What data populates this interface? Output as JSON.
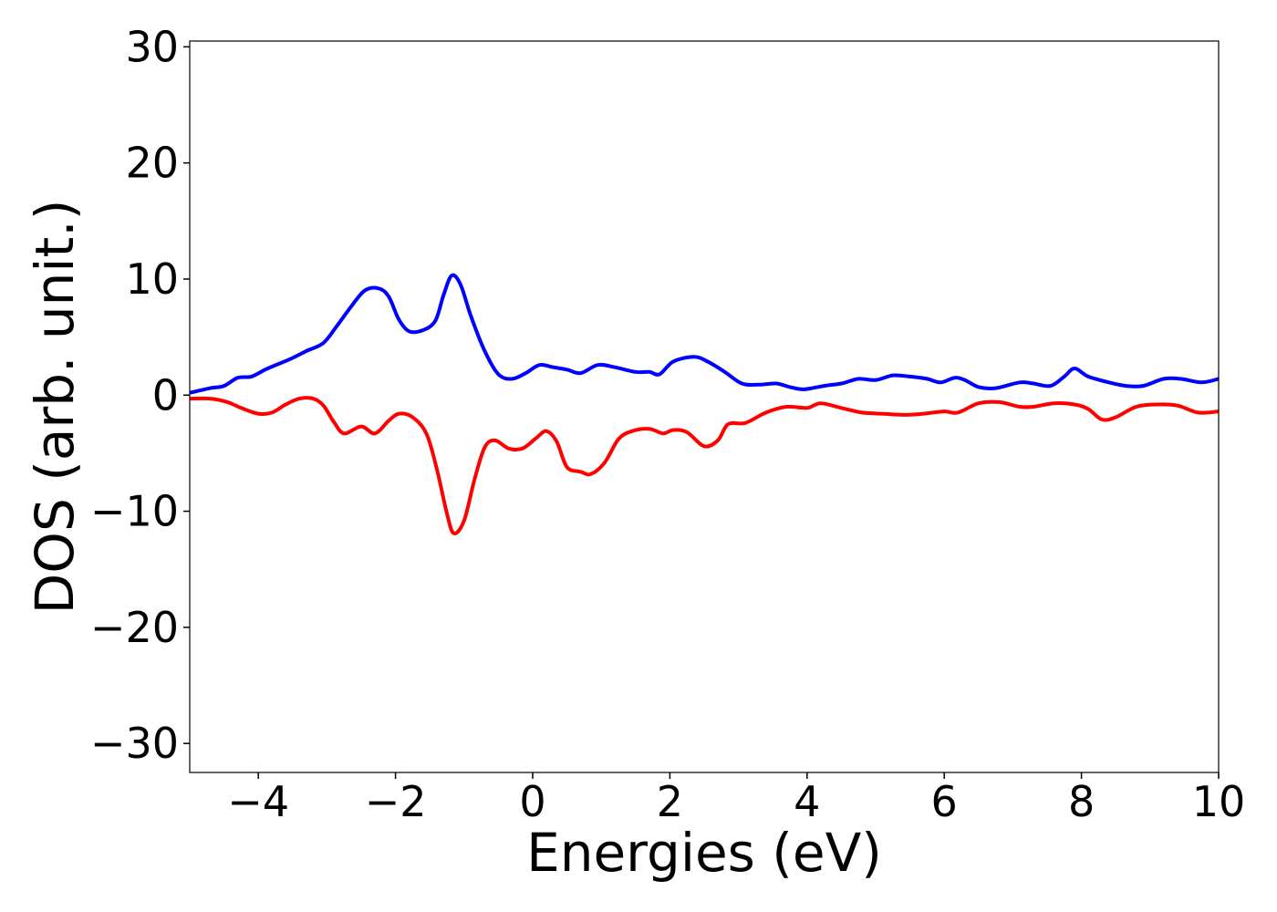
{
  "chart_data": {
    "type": "line",
    "xlabel": "Energies (eV)",
    "ylabel": "DOS (arb. unit.)",
    "xlim": [
      -5,
      10
    ],
    "ylim": [
      -32.5,
      30.5
    ],
    "xticks": [
      -4,
      -2,
      0,
      2,
      4,
      6,
      8,
      10
    ],
    "xtick_labels": [
      "−4",
      "−2",
      "0",
      "2",
      "4",
      "6",
      "8",
      "10"
    ],
    "yticks": [
      -30,
      -20,
      -10,
      0,
      10,
      20,
      30
    ],
    "ytick_labels": [
      "−30",
      "−20",
      "−10",
      "0",
      "10",
      "20",
      "30"
    ],
    "grid": false,
    "series": [
      {
        "color": "#0000ff",
        "points": [
          [
            -5.0,
            0.2
          ],
          [
            -4.7,
            0.6
          ],
          [
            -4.5,
            0.8
          ],
          [
            -4.3,
            1.5
          ],
          [
            -4.1,
            1.6
          ],
          [
            -3.9,
            2.2
          ],
          [
            -3.7,
            2.7
          ],
          [
            -3.5,
            3.2
          ],
          [
            -3.3,
            3.8
          ],
          [
            -3.05,
            4.5
          ],
          [
            -2.85,
            6.0
          ],
          [
            -2.65,
            7.6
          ],
          [
            -2.45,
            9.0
          ],
          [
            -2.25,
            9.2
          ],
          [
            -2.1,
            8.5
          ],
          [
            -1.95,
            6.5
          ],
          [
            -1.8,
            5.5
          ],
          [
            -1.6,
            5.6
          ],
          [
            -1.42,
            6.4
          ],
          [
            -1.3,
            8.6
          ],
          [
            -1.18,
            10.3
          ],
          [
            -1.05,
            9.5
          ],
          [
            -0.9,
            6.8
          ],
          [
            -0.7,
            3.8
          ],
          [
            -0.5,
            1.8
          ],
          [
            -0.3,
            1.4
          ],
          [
            -0.1,
            1.9
          ],
          [
            0.1,
            2.6
          ],
          [
            0.3,
            2.4
          ],
          [
            0.5,
            2.2
          ],
          [
            0.7,
            1.9
          ],
          [
            0.95,
            2.6
          ],
          [
            1.2,
            2.4
          ],
          [
            1.5,
            2.0
          ],
          [
            1.7,
            2.0
          ],
          [
            1.85,
            1.8
          ],
          [
            2.05,
            2.9
          ],
          [
            2.35,
            3.3
          ],
          [
            2.55,
            2.9
          ],
          [
            2.8,
            2.0
          ],
          [
            3.05,
            1.0
          ],
          [
            3.3,
            0.9
          ],
          [
            3.55,
            1.0
          ],
          [
            3.75,
            0.7
          ],
          [
            3.95,
            0.5
          ],
          [
            4.25,
            0.8
          ],
          [
            4.5,
            1.0
          ],
          [
            4.75,
            1.4
          ],
          [
            5.0,
            1.3
          ],
          [
            5.25,
            1.7
          ],
          [
            5.5,
            1.6
          ],
          [
            5.75,
            1.4
          ],
          [
            5.95,
            1.1
          ],
          [
            6.15,
            1.5
          ],
          [
            6.3,
            1.3
          ],
          [
            6.5,
            0.7
          ],
          [
            6.75,
            0.6
          ],
          [
            7.1,
            1.1
          ],
          [
            7.3,
            1.0
          ],
          [
            7.55,
            0.8
          ],
          [
            7.75,
            1.6
          ],
          [
            7.9,
            2.3
          ],
          [
            8.1,
            1.6
          ],
          [
            8.4,
            1.1
          ],
          [
            8.65,
            0.8
          ],
          [
            8.9,
            0.8
          ],
          [
            9.2,
            1.4
          ],
          [
            9.45,
            1.4
          ],
          [
            9.75,
            1.1
          ],
          [
            10.0,
            1.4
          ]
        ]
      },
      {
        "color": "#ff0000",
        "points": [
          [
            -5.0,
            -0.3
          ],
          [
            -4.7,
            -0.3
          ],
          [
            -4.45,
            -0.6
          ],
          [
            -4.25,
            -1.1
          ],
          [
            -4.0,
            -1.6
          ],
          [
            -3.8,
            -1.5
          ],
          [
            -3.6,
            -0.8
          ],
          [
            -3.4,
            -0.3
          ],
          [
            -3.2,
            -0.3
          ],
          [
            -3.05,
            -0.9
          ],
          [
            -2.9,
            -2.3
          ],
          [
            -2.75,
            -3.3
          ],
          [
            -2.5,
            -2.7
          ],
          [
            -2.3,
            -3.3
          ],
          [
            -2.1,
            -2.2
          ],
          [
            -1.95,
            -1.6
          ],
          [
            -1.75,
            -1.9
          ],
          [
            -1.55,
            -3.3
          ],
          [
            -1.4,
            -6.3
          ],
          [
            -1.25,
            -10.2
          ],
          [
            -1.15,
            -11.9
          ],
          [
            -1.0,
            -10.8
          ],
          [
            -0.85,
            -7.3
          ],
          [
            -0.7,
            -4.5
          ],
          [
            -0.55,
            -3.9
          ],
          [
            -0.35,
            -4.6
          ],
          [
            -0.15,
            -4.6
          ],
          [
            0.05,
            -3.7
          ],
          [
            0.2,
            -3.1
          ],
          [
            0.35,
            -4.0
          ],
          [
            0.5,
            -6.2
          ],
          [
            0.7,
            -6.6
          ],
          [
            0.85,
            -6.8
          ],
          [
            1.05,
            -5.8
          ],
          [
            1.25,
            -3.8
          ],
          [
            1.45,
            -3.1
          ],
          [
            1.7,
            -2.9
          ],
          [
            1.9,
            -3.3
          ],
          [
            2.05,
            -3.0
          ],
          [
            2.25,
            -3.2
          ],
          [
            2.5,
            -4.4
          ],
          [
            2.7,
            -3.9
          ],
          [
            2.85,
            -2.5
          ],
          [
            3.1,
            -2.4
          ],
          [
            3.4,
            -1.5
          ],
          [
            3.7,
            -1.0
          ],
          [
            4.0,
            -1.1
          ],
          [
            4.2,
            -0.7
          ],
          [
            4.5,
            -1.1
          ],
          [
            4.8,
            -1.5
          ],
          [
            5.1,
            -1.6
          ],
          [
            5.4,
            -1.7
          ],
          [
            5.7,
            -1.6
          ],
          [
            6.0,
            -1.4
          ],
          [
            6.2,
            -1.5
          ],
          [
            6.5,
            -0.7
          ],
          [
            6.8,
            -0.6
          ],
          [
            7.1,
            -1.0
          ],
          [
            7.3,
            -1.0
          ],
          [
            7.6,
            -0.7
          ],
          [
            7.9,
            -0.8
          ],
          [
            8.1,
            -1.2
          ],
          [
            8.3,
            -2.1
          ],
          [
            8.5,
            -1.9
          ],
          [
            8.8,
            -1.0
          ],
          [
            9.1,
            -0.8
          ],
          [
            9.4,
            -0.9
          ],
          [
            9.7,
            -1.5
          ],
          [
            10.0,
            -1.4
          ]
        ]
      }
    ]
  }
}
